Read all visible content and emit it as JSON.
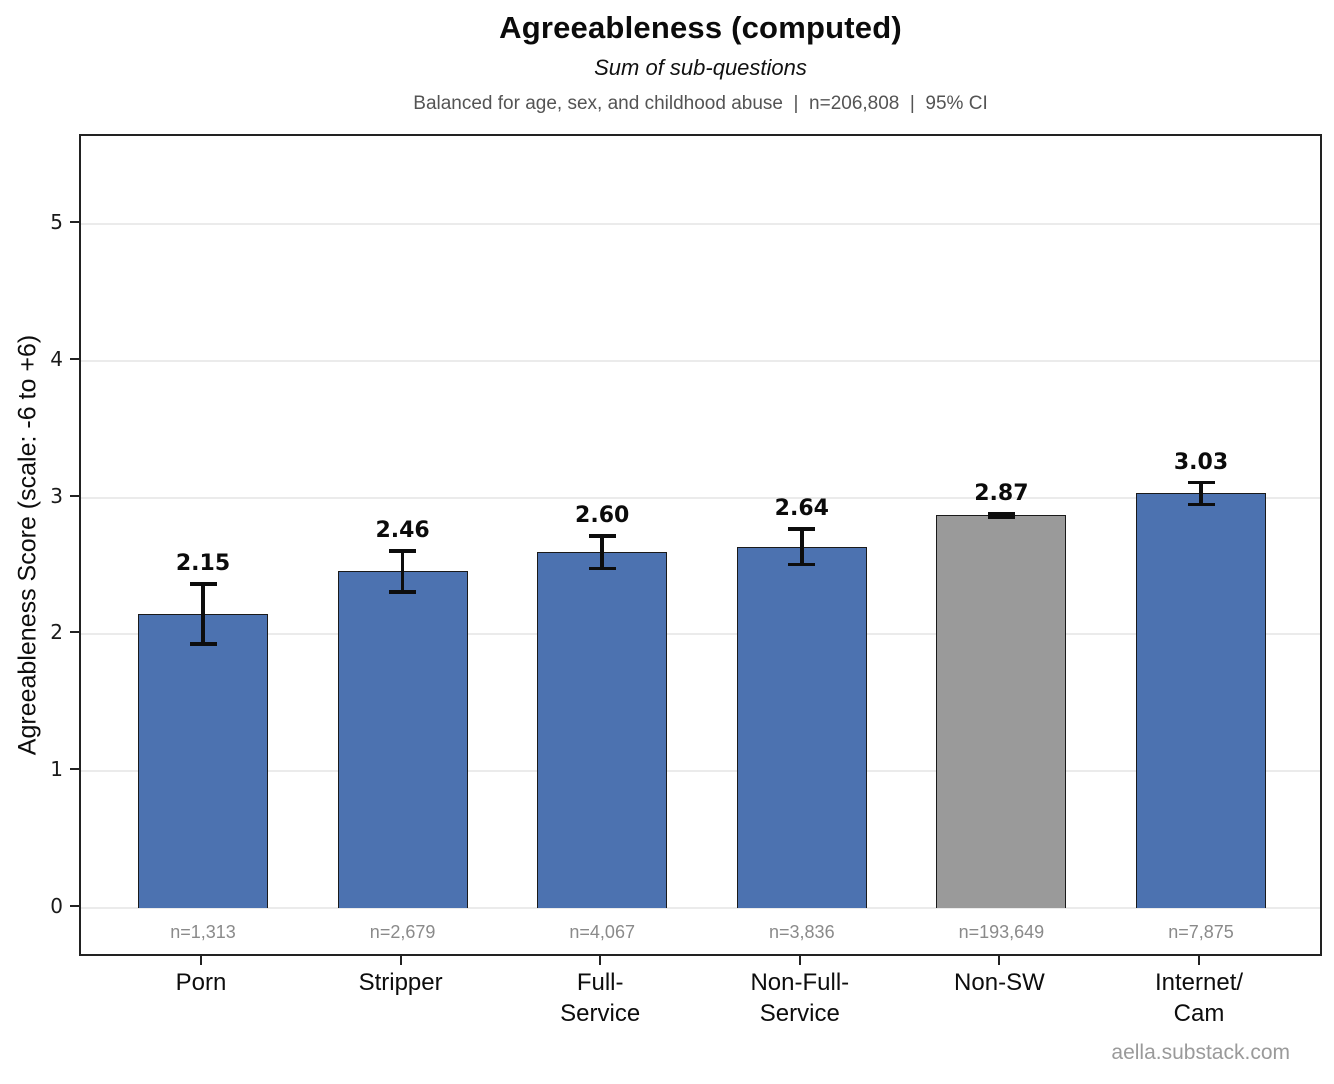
{
  "header": {
    "title": "Agreeableness (computed)",
    "subtitle": "Sum of sub-questions",
    "meta": "Balanced for age, sex, and childhood abuse  |  n=206,808  |  95% CI"
  },
  "watermark": "aella.substack.com",
  "colors": {
    "bar_blue": "#4C72B0",
    "bar_gray": "#9A9A9A",
    "bar_edge": "#1a1a1a",
    "error_bar": "#0d0d0d",
    "gridline": "#ebebeb",
    "frame": "#222222",
    "muted_text": "#8a8a8a"
  },
  "chart_data": {
    "type": "bar",
    "title": "Agreeableness (computed)",
    "subtitle": "Sum of sub-questions",
    "note": "Balanced for age, sex, and childhood abuse | n=206,808 | 95% CI",
    "xlabel": "",
    "ylabel": "Agreeableness Score (scale: -6 to +6)",
    "ylim": [
      -0.37,
      5.64
    ],
    "yticks": [
      0,
      1,
      2,
      3,
      4,
      5
    ],
    "grid": "horizontal",
    "legend": "none",
    "categories": [
      "Porn",
      "Stripper",
      "Full-\nService",
      "Non-Full-\nService",
      "Non-SW",
      "Internet/\nCam"
    ],
    "values": [
      2.15,
      2.46,
      2.6,
      2.64,
      2.87,
      3.03
    ],
    "value_labels": [
      "2.15",
      "2.46",
      "2.60",
      "2.64",
      "2.87",
      "3.03"
    ],
    "errors_95ci": [
      0.22,
      0.15,
      0.12,
      0.13,
      0.01,
      0.08
    ],
    "sample_sizes": [
      "n=1,313",
      "n=2,679",
      "n=4,067",
      "n=3,836",
      "n=193,649",
      "n=7,875"
    ],
    "bar_colors": [
      "#4C72B0",
      "#4C72B0",
      "#4C72B0",
      "#4C72B0",
      "#9A9A9A",
      "#4C72B0"
    ]
  }
}
